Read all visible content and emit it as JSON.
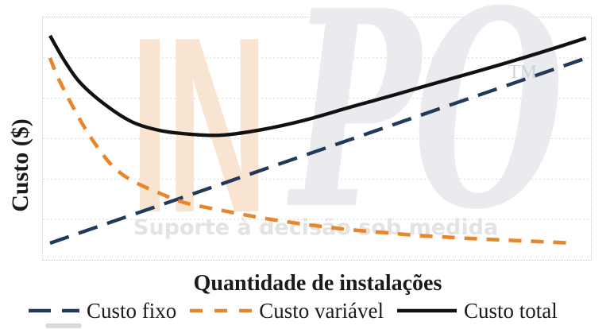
{
  "watermark": {
    "brand_left": "IN",
    "brand_right": "PO",
    "trademark": "TM",
    "slogan": "Suporte à decisão sob medida",
    "brand_left_color": "#f9e4d1",
    "brand_right_color": "#e9ebef",
    "trademark_color": "#ccd1d9",
    "slogan_color": "#e3e3e3"
  },
  "chart_data": {
    "type": "line",
    "title": "",
    "xlabel": "Quantidade de instalações",
    "ylabel": "Custo ($)",
    "x_range": [
      0,
      100
    ],
    "y_range": [
      0,
      100
    ],
    "axis_tick_labels": "none",
    "grid": {
      "horizontal_lines": 5,
      "vertical_lines": 0,
      "style": "dotted",
      "color": "#d8d8d8"
    },
    "legend_position": "bottom",
    "series": [
      {
        "id": "fixo",
        "name": "Custo fixo",
        "color": "#22395a",
        "style": "dashed-long",
        "width": 4.4,
        "points": [
          [
            1.3,
            6.9
          ],
          [
            99.6,
            83.6
          ]
        ]
      },
      {
        "id": "variavel",
        "name": "Custo variável",
        "color": "#e8862b",
        "style": "dashed-short",
        "width": 4.6,
        "points": [
          [
            1.3,
            83.3
          ],
          [
            3,
            74
          ],
          [
            6.8,
            57.7
          ],
          [
            9.5,
            48
          ],
          [
            12.6,
            39
          ],
          [
            16,
            33
          ],
          [
            21.3,
            27.5
          ],
          [
            26,
            23.5
          ],
          [
            32.9,
            20.3
          ],
          [
            40,
            17.3
          ],
          [
            47.4,
            14.8
          ],
          [
            55,
            12.7
          ],
          [
            62,
            11.3
          ],
          [
            67.7,
            10.2
          ],
          [
            75,
            9.2
          ],
          [
            82,
            8.4
          ],
          [
            89,
            7.7
          ],
          [
            96.7,
            6.9
          ]
        ]
      },
      {
        "id": "total",
        "name": "Custo total",
        "color": "#111111",
        "style": "solid",
        "width": 4.4,
        "points": [
          [
            1.3,
            92.5
          ],
          [
            3.9,
            82.3
          ],
          [
            6.8,
            73.1
          ],
          [
            11.2,
            64.3
          ],
          [
            16.2,
            57
          ],
          [
            21.3,
            53.4
          ],
          [
            27.1,
            51.8
          ],
          [
            32.9,
            51.5
          ],
          [
            40.1,
            53.8
          ],
          [
            47.4,
            57.4
          ],
          [
            56.1,
            63
          ],
          [
            64.8,
            68.5
          ],
          [
            73.5,
            74.1
          ],
          [
            82.2,
            79.7
          ],
          [
            90.9,
            85.6
          ],
          [
            99.1,
            91.5
          ]
        ]
      }
    ]
  }
}
